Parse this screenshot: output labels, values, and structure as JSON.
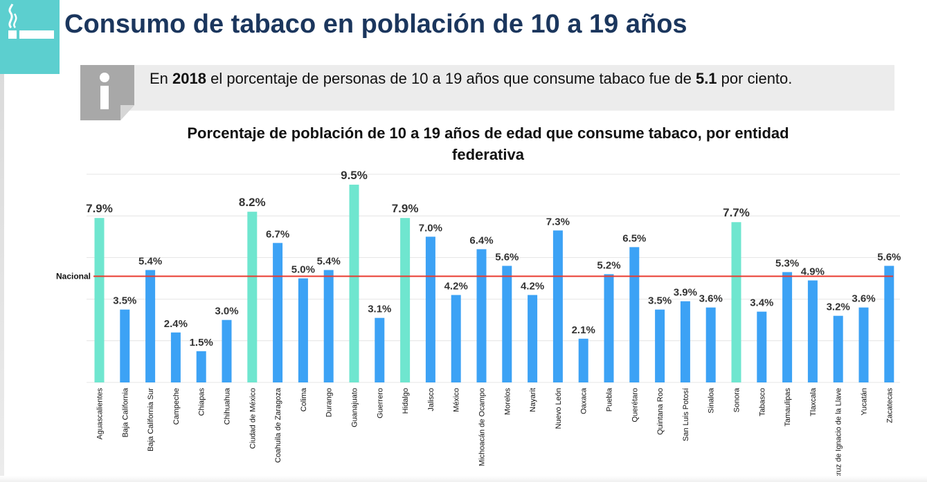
{
  "header": {
    "title": "Consumo de tabaco en población de 10 a 19 años",
    "logo_icon": "cigarette-icon"
  },
  "info": {
    "icon": "info-icon",
    "prefix": "En ",
    "year": "2018",
    "middle": "  el porcentaje de personas de 10 a 19  años que consume tabaco fue de  ",
    "value": "5.1",
    "suffix": " por ciento."
  },
  "chart_data": {
    "type": "bar",
    "title_line1": "Porcentaje de población de 10 a 19 años de edad que consume tabaco, por entidad",
    "title_line2": "federativa",
    "categories": [
      "Aguascalientes",
      "Baja California",
      "Baja California Sur",
      "Campeche",
      "Chiapas",
      "Chihuahua",
      "Ciudad de México",
      "Coahuila de Zaragoza",
      "Colima",
      "Durango",
      "Guanajuato",
      "Guerrero",
      "Hidalgo",
      "Jalisco",
      "México",
      "Michoacán de Ocampo",
      "Morelos",
      "Nayarit",
      "Nuevo León",
      "Oaxaca",
      "Puebla",
      "Querétaro",
      "Quintana Roo",
      "San Luis Potosí",
      "Sinaloa",
      "Sonora",
      "Tabasco",
      "Tamaulipas",
      "Tlaxcala",
      "Veracruz de Ignacio de la Llave",
      "Yucatán",
      "Zacatecas"
    ],
    "values": [
      7.9,
      3.5,
      5.4,
      2.4,
      1.5,
      3.0,
      8.2,
      6.7,
      5.0,
      5.4,
      9.5,
      3.1,
      7.9,
      7.0,
      4.2,
      6.4,
      5.6,
      4.2,
      7.3,
      2.1,
      5.2,
      6.5,
      3.5,
      3.9,
      3.6,
      7.7,
      3.4,
      5.3,
      4.9,
      3.2,
      3.6,
      5.6
    ],
    "labels": [
      "7.9%",
      "3.5%",
      "5.4%",
      "2.4%",
      "1.5%",
      "3.0%",
      "8.2%",
      "6.7%",
      "5.0%",
      "5.4%",
      "9.5%",
      "3.1%",
      "7.9%",
      "7.0%",
      "4.2%",
      "6.4%",
      "5.6%",
      "4.2%",
      "7.3%",
      "2.1%",
      "5.2%",
      "6.5%",
      "3.5%",
      "3.9%",
      "3.6%",
      "7.7%",
      "3.4%",
      "5.3%",
      "4.9%",
      "3.2%",
      "3.6%",
      "5.6%"
    ],
    "highlight": [
      "Aguascalientes",
      "Ciudad de México",
      "Guanajuato",
      "Hidalgo",
      "Sonora"
    ],
    "colors": {
      "normal": "#3ca2f5",
      "highlight": "#6fe6cf",
      "reference": "#e83a2e",
      "grid": "#e4e4e4"
    },
    "reference_line": {
      "label": "Nacional",
      "value": 5.1
    },
    "ylim": [
      0,
      10
    ],
    "grid": true,
    "xlabel": "",
    "ylabel": ""
  }
}
